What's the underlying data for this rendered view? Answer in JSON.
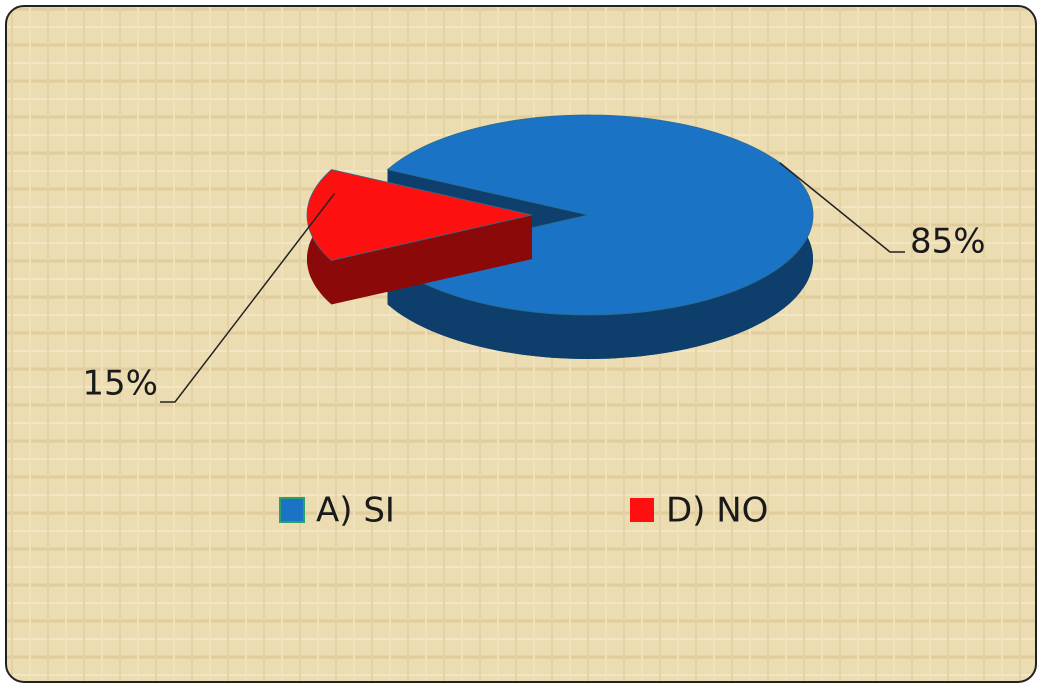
{
  "chart_data": {
    "type": "pie",
    "categories": [
      "A) SI",
      "D) NO"
    ],
    "values": [
      85,
      15
    ],
    "value_labels": [
      "85%",
      "15%"
    ],
    "colors": [
      "#1b73c6",
      "#ff1010"
    ],
    "legend": "bottom"
  }
}
